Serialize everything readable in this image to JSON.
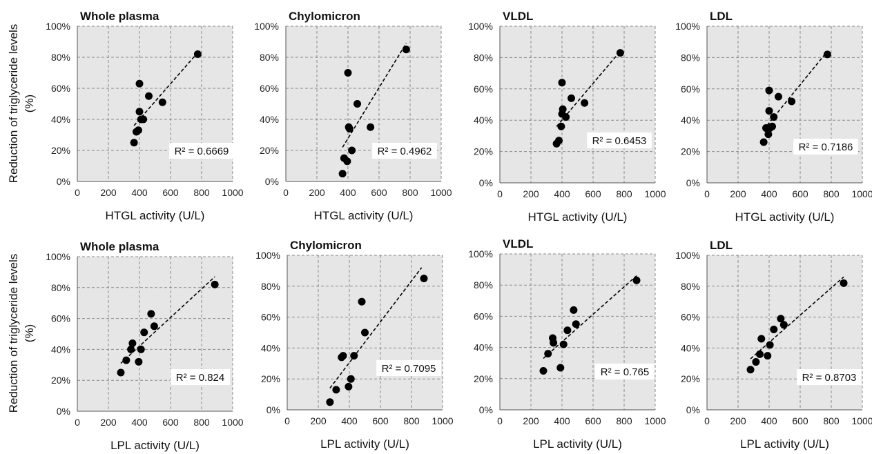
{
  "figure": {
    "ylabel_line1": "Reduction of triglyceride levels",
    "ylabel_line2": "(%)"
  },
  "chart_data": [
    {
      "type": "scatter",
      "title": "Whole plasma",
      "xlabel": "HTGL activity (U/L)",
      "xlim": [
        0,
        1000
      ],
      "ylim": [
        0,
        100
      ],
      "xticks": [
        "0",
        "200",
        "400",
        "600",
        "800",
        "1000"
      ],
      "yticks": [
        "0%",
        "20%",
        "40%",
        "60%",
        "80%",
        "100%"
      ],
      "grid": true,
      "background": "#e6e6e6",
      "points": [
        [
          365,
          25
        ],
        [
          380,
          32
        ],
        [
          393,
          33
        ],
        [
          400,
          63
        ],
        [
          400,
          45
        ],
        [
          410,
          40
        ],
        [
          425,
          40
        ],
        [
          460,
          55
        ],
        [
          548,
          51
        ],
        [
          775,
          82
        ]
      ],
      "trendline": [
        [
          365,
          36
        ],
        [
          775,
          83
        ]
      ],
      "r2_label": "R² = 0.6669"
    },
    {
      "type": "scatter",
      "title": "Chylomicron",
      "xlabel": "HTGL activity (U/L)",
      "xlim": [
        0,
        1000
      ],
      "ylim": [
        0,
        100
      ],
      "xticks": [
        "0",
        "200",
        "400",
        "600",
        "800",
        "1000"
      ],
      "yticks": [
        "0%",
        "20%",
        "40%",
        "60%",
        "80%",
        "100%"
      ],
      "grid": true,
      "background": "#e6e6e6",
      "points": [
        [
          365,
          5
        ],
        [
          375,
          15
        ],
        [
          395,
          13
        ],
        [
          400,
          70
        ],
        [
          405,
          35
        ],
        [
          410,
          34
        ],
        [
          425,
          20
        ],
        [
          460,
          50
        ],
        [
          545,
          35
        ],
        [
          775,
          85
        ]
      ],
      "trendline": [
        [
          365,
          22
        ],
        [
          775,
          89
        ]
      ],
      "r2_label": "R² = 0.4962"
    },
    {
      "type": "scatter",
      "title": "VLDL",
      "xlabel": "HTGL activity (U/L)",
      "xlim": [
        0,
        1000
      ],
      "ylim": [
        0,
        100
      ],
      "xticks": [
        "0",
        "200",
        "400",
        "600",
        "800",
        "1000"
      ],
      "yticks": [
        "0%",
        "20%",
        "40%",
        "60%",
        "80%",
        "100%"
      ],
      "grid": true,
      "background": "#e6e6e6",
      "points": [
        [
          365,
          25
        ],
        [
          380,
          27
        ],
        [
          395,
          36
        ],
        [
          400,
          44
        ],
        [
          400,
          64
        ],
        [
          405,
          47
        ],
        [
          425,
          42
        ],
        [
          460,
          54
        ],
        [
          545,
          51
        ],
        [
          775,
          83
        ]
      ],
      "trendline": [
        [
          365,
          36
        ],
        [
          775,
          84
        ]
      ],
      "r2_label": "R² = 0.6453"
    },
    {
      "type": "scatter",
      "title": "LDL",
      "xlabel": "HTGL activity (U/L)",
      "xlim": [
        0,
        1000
      ],
      "ylim": [
        0,
        100
      ],
      "xticks": [
        "0",
        "200",
        "400",
        "600",
        "800",
        "1000"
      ],
      "yticks": [
        "0%",
        "20%",
        "40%",
        "60%",
        "80%",
        "100%"
      ],
      "grid": true,
      "background": "#e6e6e6",
      "points": [
        [
          365,
          26
        ],
        [
          380,
          35
        ],
        [
          395,
          31
        ],
        [
          400,
          46
        ],
        [
          400,
          59
        ],
        [
          405,
          35
        ],
        [
          420,
          36
        ],
        [
          430,
          42
        ],
        [
          460,
          55
        ],
        [
          545,
          52
        ],
        [
          775,
          82
        ]
      ],
      "trendline": [
        [
          365,
          34
        ],
        [
          775,
          84
        ]
      ],
      "r2_label": "R² = 0.7186"
    },
    {
      "type": "scatter",
      "title": "Whole plasma",
      "xlabel": "LPL activity (U/L)",
      "xlim": [
        0,
        1000
      ],
      "ylim": [
        0,
        100
      ],
      "xticks": [
        "0",
        "200",
        "400",
        "600",
        "800",
        "1000"
      ],
      "yticks": [
        "0%",
        "20%",
        "40%",
        "60%",
        "80%",
        "100%"
      ],
      "grid": true,
      "background": "#e6e6e6",
      "points": [
        [
          280,
          25
        ],
        [
          315,
          33
        ],
        [
          345,
          40
        ],
        [
          355,
          44
        ],
        [
          395,
          32
        ],
        [
          410,
          40
        ],
        [
          430,
          51
        ],
        [
          475,
          63
        ],
        [
          495,
          55
        ],
        [
          885,
          82
        ]
      ],
      "trendline": [
        [
          280,
          31
        ],
        [
          885,
          87
        ]
      ],
      "r2_label": "R² = 0.824"
    },
    {
      "type": "scatter",
      "title": "Chylomicron",
      "xlabel": "LPL activity (U/L)",
      "xlim": [
        0,
        1000
      ],
      "ylim": [
        0,
        100
      ],
      "xticks": [
        "0",
        "200",
        "400",
        "600",
        "800",
        "1000"
      ],
      "yticks": [
        "0%",
        "20%",
        "40%",
        "60%",
        "80%",
        "100%"
      ],
      "grid": true,
      "background": "#e6e6e6",
      "points": [
        [
          275,
          5
        ],
        [
          315,
          13
        ],
        [
          350,
          34
        ],
        [
          360,
          35
        ],
        [
          395,
          15
        ],
        [
          410,
          20
        ],
        [
          430,
          35
        ],
        [
          480,
          70
        ],
        [
          500,
          50
        ],
        [
          880,
          85
        ]
      ],
      "trendline": [
        [
          275,
          14
        ],
        [
          865,
          92
        ]
      ],
      "r2_label": "R² = 0.7095"
    },
    {
      "type": "scatter",
      "title": "VLDL",
      "xlabel": "LPL activity (U/L)",
      "xlim": [
        0,
        1000
      ],
      "ylim": [
        0,
        100
      ],
      "xticks": [
        "0",
        "200",
        "400",
        "600",
        "800",
        "1000"
      ],
      "yticks": [
        "0%",
        "20%",
        "40%",
        "60%",
        "80%",
        "100%"
      ],
      "grid": true,
      "background": "#e6e6e6",
      "points": [
        [
          280,
          25
        ],
        [
          310,
          36
        ],
        [
          340,
          46
        ],
        [
          345,
          43
        ],
        [
          390,
          27
        ],
        [
          410,
          42
        ],
        [
          435,
          51
        ],
        [
          475,
          64
        ],
        [
          490,
          55
        ],
        [
          880,
          83
        ]
      ],
      "trendline": [
        [
          280,
          33
        ],
        [
          880,
          86
        ]
      ],
      "r2_label": "R² = 0.765"
    },
    {
      "type": "scatter",
      "title": "LDL",
      "xlabel": "LPL activity (U/L)",
      "xlim": [
        0,
        1000
      ],
      "ylim": [
        0,
        100
      ],
      "xticks": [
        "0",
        "200",
        "400",
        "600",
        "800",
        "1000"
      ],
      "yticks": [
        "0%",
        "20%",
        "40%",
        "60%",
        "80%",
        "100%"
      ],
      "grid": true,
      "background": "#e6e6e6",
      "points": [
        [
          280,
          26
        ],
        [
          315,
          31
        ],
        [
          340,
          36
        ],
        [
          350,
          46
        ],
        [
          390,
          35
        ],
        [
          405,
          42
        ],
        [
          430,
          52
        ],
        [
          475,
          59
        ],
        [
          495,
          55
        ],
        [
          880,
          82
        ]
      ],
      "trendline": [
        [
          280,
          33
        ],
        [
          880,
          86
        ]
      ],
      "r2_label": "R² = 0.8703"
    }
  ]
}
